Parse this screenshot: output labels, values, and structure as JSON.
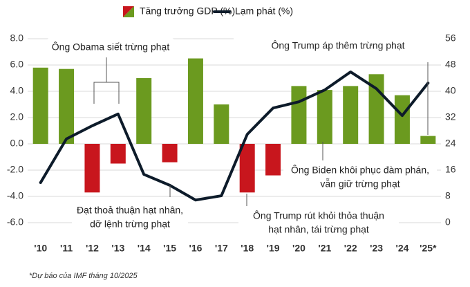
{
  "chart_data": {
    "type": "bar_line",
    "categories": [
      "'10",
      "'11",
      "'12",
      "'13",
      "'14",
      "'15",
      "'16",
      "'17",
      "'18",
      "'19",
      "'20",
      "'21",
      "'22",
      "'23",
      "'24",
      "'25*"
    ],
    "series": [
      {
        "name": "Tăng trưởng GDP (%)",
        "type": "bar",
        "color": "#6b9a1f",
        "negative_color": "#c8161d",
        "values": [
          5.8,
          5.7,
          -3.7,
          -1.5,
          5.0,
          -1.4,
          6.5,
          3.0,
          -3.7,
          -2.4,
          4.4,
          4.1,
          4.4,
          5.3,
          3.7,
          0.6
        ]
      },
      {
        "name": "Lạm phát (%)",
        "type": "line",
        "axis": "y2",
        "color": "#0d1b2a",
        "values": [
          12.2,
          25.5,
          29.5,
          33.1,
          14.7,
          11.4,
          6.9,
          8.2,
          26.9,
          34.9,
          36.8,
          40.4,
          45.9,
          40.8,
          32.6,
          42.5
        ]
      }
    ],
    "ylim": [
      -7,
      9
    ],
    "yticks": [
      {
        "value": -6,
        "label": "-6.0"
      },
      {
        "value": -4,
        "label": "-4.0"
      },
      {
        "value": -2,
        "label": "-2.0"
      },
      {
        "value": 0,
        "label": "0.0"
      },
      {
        "value": 2,
        "label": "2.0"
      },
      {
        "value": 4,
        "label": "4.0"
      },
      {
        "value": 6,
        "label": "6.0"
      },
      {
        "value": 8,
        "label": "8.0"
      }
    ],
    "y2lim": [
      -4,
      60
    ],
    "y2ticks": [
      0,
      8,
      16,
      24,
      32,
      40,
      48,
      56
    ],
    "grid": true,
    "annotations": [
      [
        "Ông Obama siết trừng phạt"
      ],
      [
        "Ông Trump áp thêm trừng phạt"
      ],
      [
        "Ông Biden khôi phục đàm phán,",
        "vẫn giữ trừng phạt"
      ],
      [
        "Đạt thoả thuận hạt nhân,",
        "dỡ lệnh trừng phạt"
      ],
      [
        "Ông Trump rút khỏi thỏa thuận",
        "hạt nhân, tái trừng phạt"
      ]
    ],
    "footnote": "*Dự báo của IMF tháng 10/2025"
  }
}
